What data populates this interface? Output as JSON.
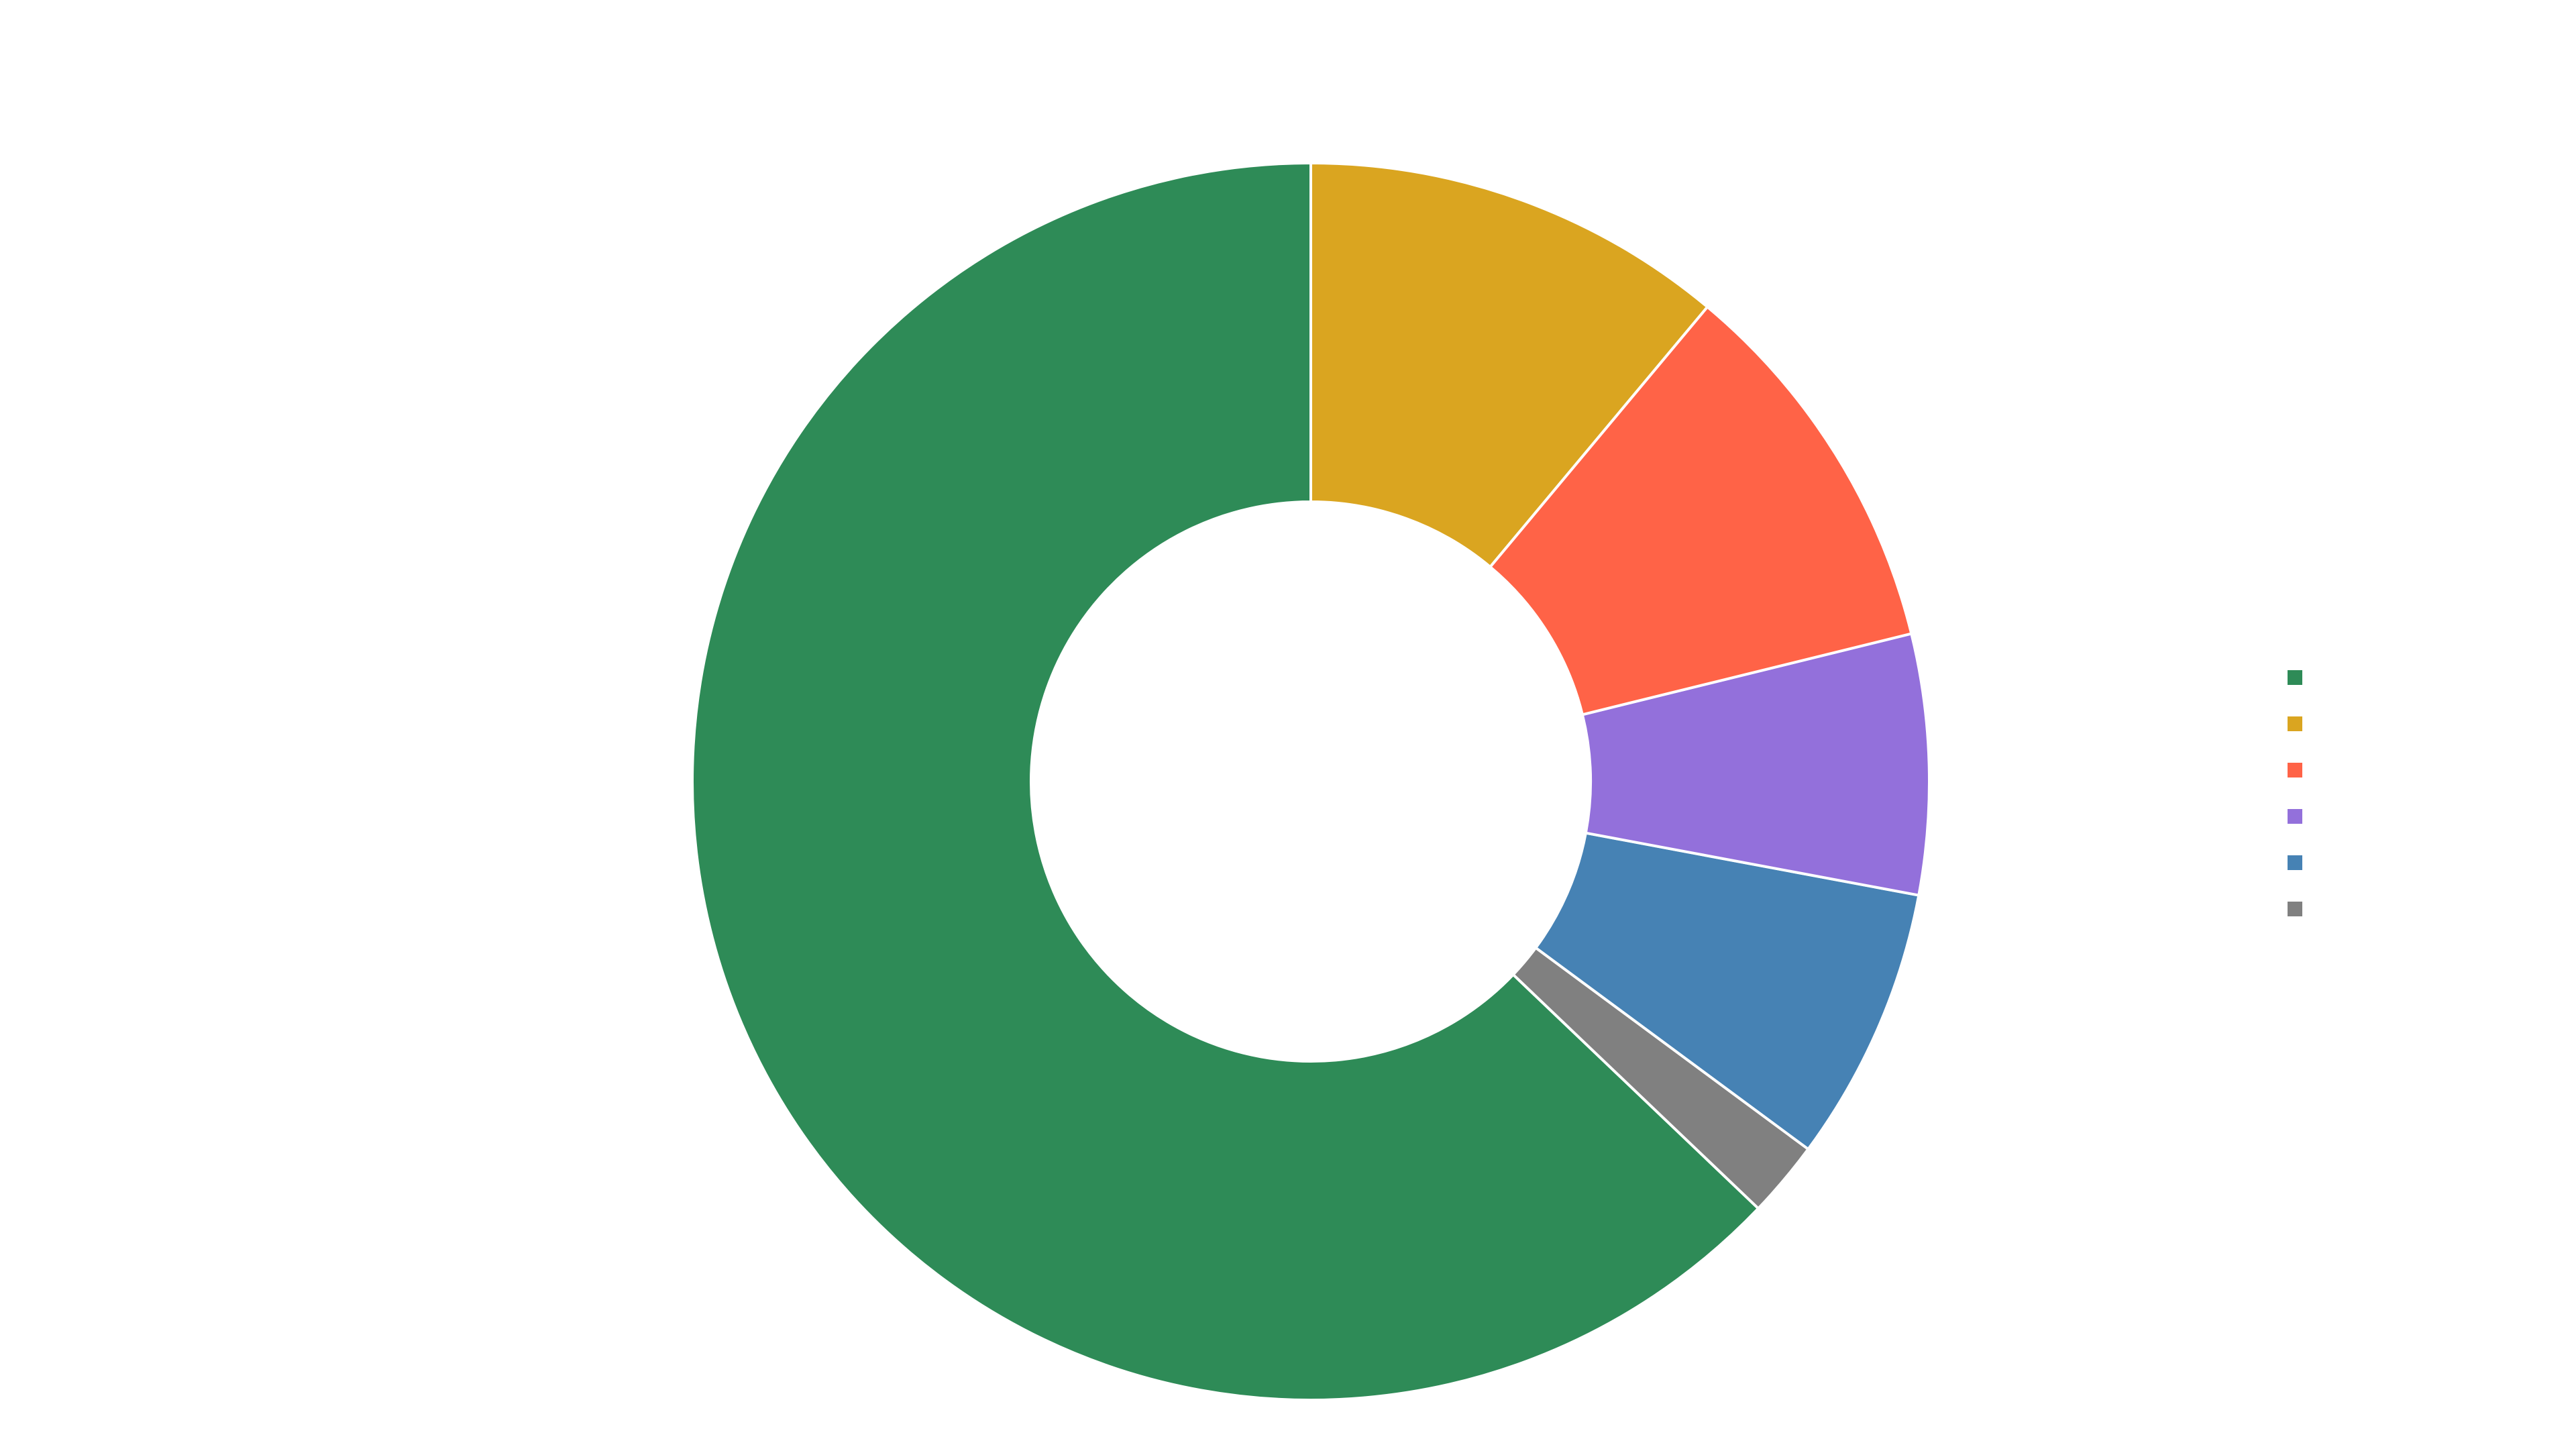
{
  "chart_data": {
    "type": "pie",
    "donut": true,
    "title": "",
    "legend_position": "right",
    "slices": [
      {
        "label": "",
        "value": 63.0,
        "color": "#2e8b57"
      },
      {
        "label": "",
        "value": 2.0,
        "color": "#808080"
      },
      {
        "label": "",
        "value": 7.2,
        "color": "#4682b4"
      },
      {
        "label": "",
        "value": 6.8,
        "color": "#9370db"
      },
      {
        "label": "",
        "value": 10.1,
        "color": "#ff6347"
      },
      {
        "label": "",
        "value": 11.1,
        "color": "#daa520"
      }
    ],
    "legend": [
      {
        "label": "",
        "color": "#2e8b57"
      },
      {
        "label": "",
        "color": "#daa520"
      },
      {
        "label": "",
        "color": "#ff6347"
      },
      {
        "label": "",
        "color": "#9370db"
      },
      {
        "label": "",
        "color": "#4682b4"
      },
      {
        "label": "",
        "color": "#808080"
      }
    ]
  }
}
